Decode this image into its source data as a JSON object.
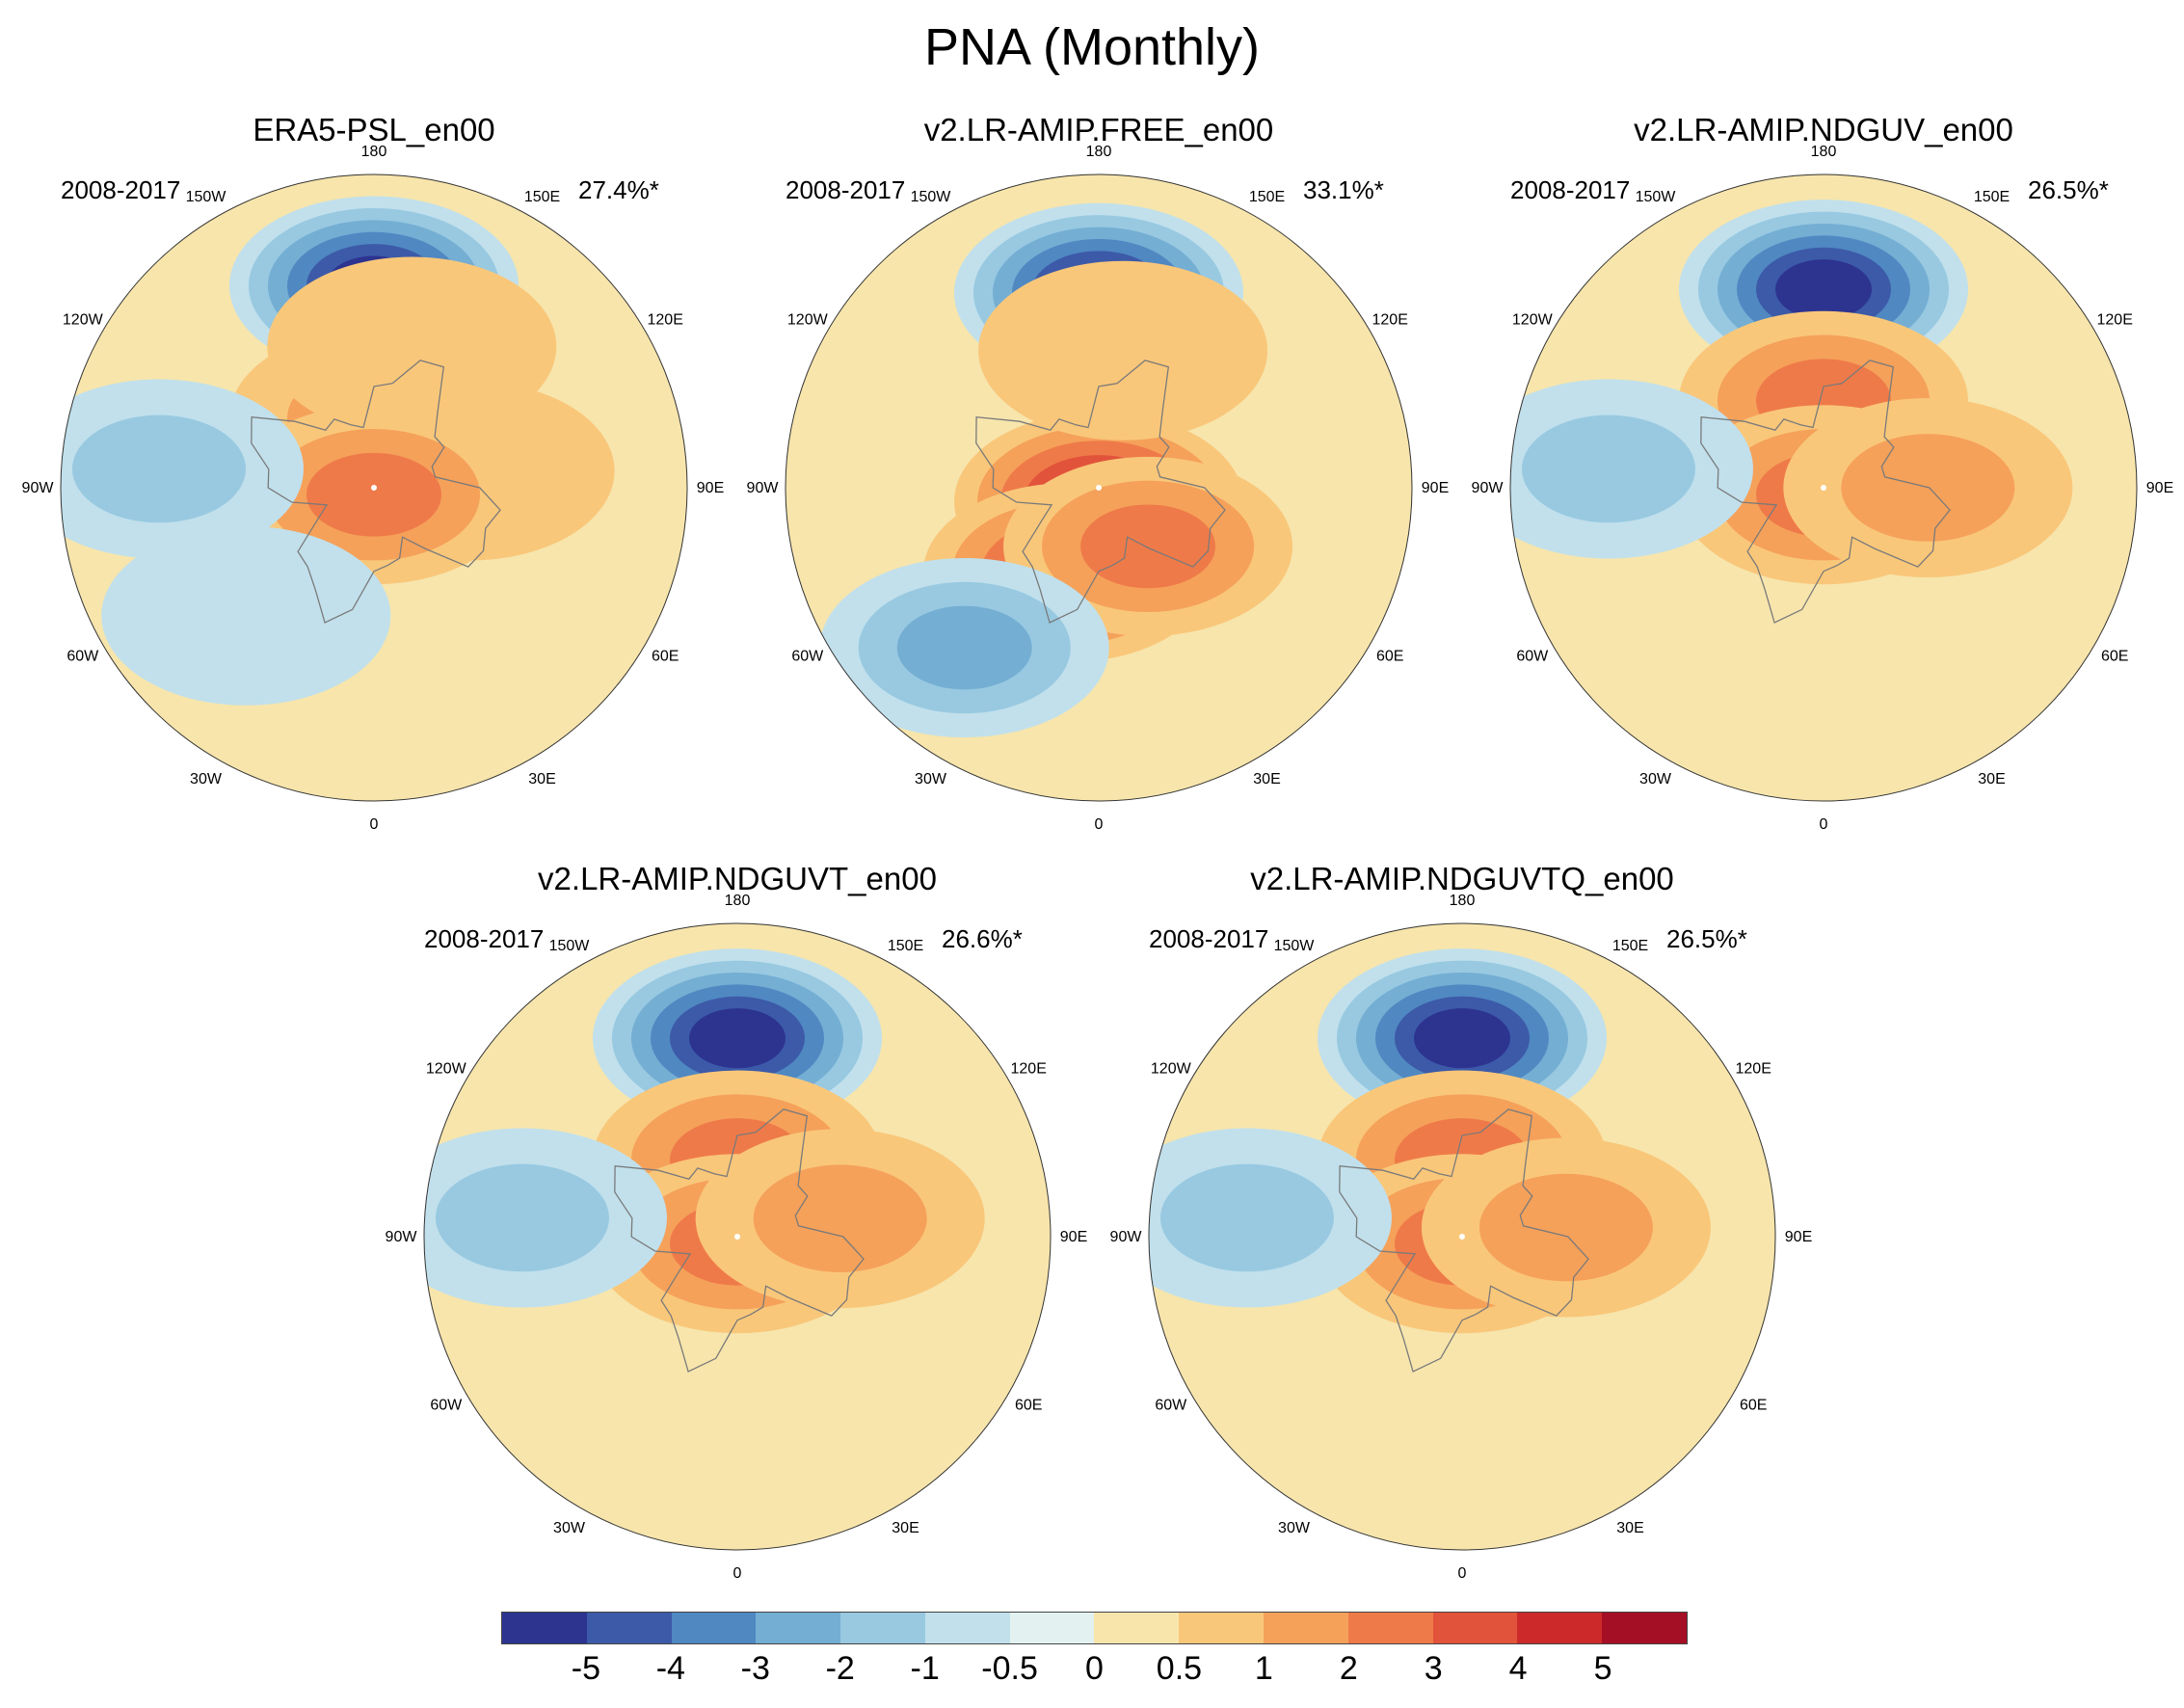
{
  "title": "PNA (Monthly)",
  "chart_data": {
    "type": "heatmap",
    "projection": "north-polar-stereographic",
    "variable": "sea-level pressure PNA pattern",
    "panels": [
      {
        "name": "ERA5-PSL_en00",
        "period": "2008-2017",
        "pct": "27.4%*",
        "anomalies": [
          {
            "lon": 180,
            "lat": 32,
            "value": -5
          },
          {
            "lon": 180,
            "lat": 70,
            "value": 1.5
          },
          {
            "lon": 165,
            "lat": 48,
            "value": 0.5
          },
          {
            "lon": 100,
            "lat": 62,
            "value": 0.5
          },
          {
            "lon": 0,
            "lat": 88,
            "value": 2
          },
          {
            "lon": -95,
            "lat": 28,
            "value": -1
          },
          {
            "lon": -45,
            "lat": 38,
            "value": -0.5
          }
        ]
      },
      {
        "name": "v2.LR-AMIP.FREE_en00",
        "period": "2008-2017",
        "pct": "33.1%*",
        "anomalies": [
          {
            "lon": 180,
            "lat": 34,
            "value": -5
          },
          {
            "lon": 0,
            "lat": 86,
            "value": 4
          },
          {
            "lon": -20,
            "lat": 64,
            "value": 3
          },
          {
            "lon": 40,
            "lat": 68,
            "value": 2
          },
          {
            "lon": -40,
            "lat": 30,
            "value": -2
          },
          {
            "lon": 170,
            "lat": 50,
            "value": 0.5
          }
        ]
      },
      {
        "name": "v2.LR-AMIP.NDGUV_en00",
        "period": "2008-2017",
        "pct": "26.5%*",
        "anomalies": [
          {
            "lon": 180,
            "lat": 33,
            "value": -5
          },
          {
            "lon": 180,
            "lat": 65,
            "value": 2
          },
          {
            "lon": 0,
            "lat": 88,
            "value": 2
          },
          {
            "lon": 90,
            "lat": 60,
            "value": 1
          },
          {
            "lon": -95,
            "lat": 28,
            "value": -1
          }
        ]
      },
      {
        "name": "v2.LR-AMIP.NDGUVT_en00",
        "period": "2008-2017",
        "pct": "26.6%*",
        "anomalies": [
          {
            "lon": 180,
            "lat": 33,
            "value": -5
          },
          {
            "lon": 180,
            "lat": 68,
            "value": 2
          },
          {
            "lon": 0,
            "lat": 88,
            "value": 2
          },
          {
            "lon": 100,
            "lat": 60,
            "value": 1
          },
          {
            "lon": -95,
            "lat": 28,
            "value": -1
          }
        ]
      },
      {
        "name": "v2.LR-AMIP.NDGUVTQ_en00",
        "period": "2008-2017",
        "pct": "26.5%*",
        "anomalies": [
          {
            "lon": 180,
            "lat": 33,
            "value": -5
          },
          {
            "lon": 180,
            "lat": 68,
            "value": 2
          },
          {
            "lon": 0,
            "lat": 88,
            "value": 2
          },
          {
            "lon": 95,
            "lat": 60,
            "value": 1
          },
          {
            "lon": -95,
            "lat": 28,
            "value": -1
          }
        ]
      }
    ],
    "lon_labels": [
      "180",
      "150E",
      "120E",
      "90E",
      "60E",
      "30E",
      "0",
      "30W",
      "60W",
      "90W",
      "120W",
      "150W"
    ],
    "colorbar": {
      "tick_labels": [
        "-5",
        "-4",
        "-3",
        "-2",
        "-1",
        "-0.5",
        "0",
        "0.5",
        "1",
        "2",
        "3",
        "4",
        "5"
      ],
      "colors": [
        "#2d3490",
        "#3c5aa8",
        "#5088c2",
        "#74aed3",
        "#98c9e1",
        "#c1e0ec",
        "#e3f2f1",
        "#f7e5ac",
        "#f9c77a",
        "#f5a15a",
        "#ef7a49",
        "#e2533b",
        "#cc2a2a",
        "#a50f25"
      ]
    }
  }
}
